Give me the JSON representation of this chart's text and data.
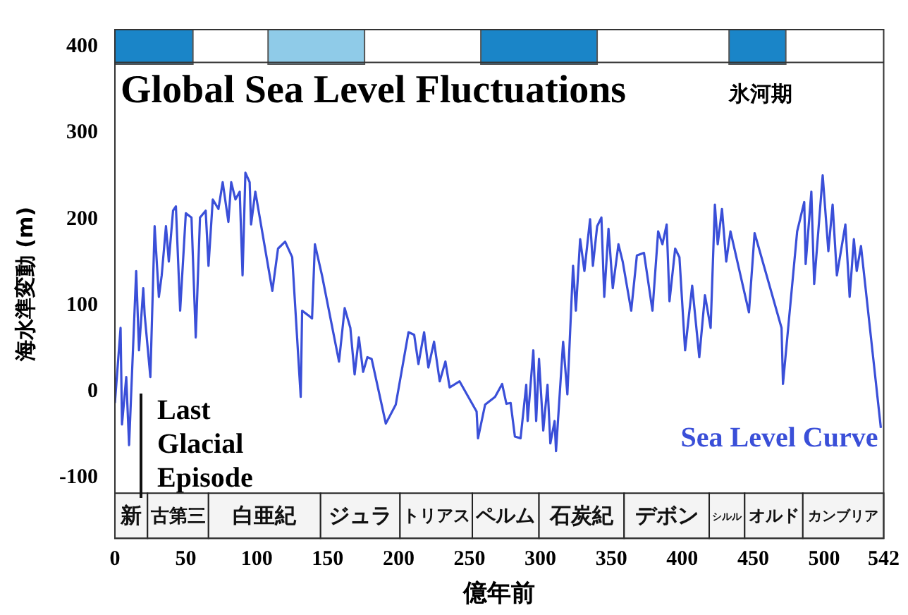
{
  "chart_data": {
    "type": "line",
    "title": "Global Sea Level Fluctuations",
    "xlabel": "億年前",
    "ylabel": "海水準変動 (m)",
    "annotations": [
      "氷河期",
      {
        "text": "Last Glacial Episode",
        "x": 10,
        "y": -62
      }
    ],
    "xlim": [
      0,
      542
    ],
    "xticks": [
      0,
      50,
      100,
      150,
      200,
      250,
      300,
      350,
      400,
      450,
      500,
      542
    ],
    "ylim": [
      -170,
      420
    ],
    "yticks": [
      -100,
      0,
      100,
      200,
      300,
      400
    ],
    "ref_lines": [
      {
        "axis": "y",
        "value": 382,
        "color": "#333333"
      }
    ],
    "grid": false,
    "legend": false,
    "marker": "none",
    "line_style": "solid",
    "bands": [
      {
        "axis": "x",
        "from": 0,
        "to": 55,
        "color": "#1a85c8"
      },
      {
        "axis": "x",
        "from": 108,
        "to": 176,
        "color": "#8fcbe8"
      },
      {
        "axis": "x",
        "from": 258,
        "to": 340,
        "color": "#1a85c8"
      },
      {
        "axis": "x",
        "from": 433,
        "to": 473,
        "color": "#1a85c8"
      },
      {
        "axis": "x",
        "from": 0,
        "to": 23,
        "label": "新",
        "color": "#f4f4f4"
      },
      {
        "axis": "x",
        "from": 23,
        "to": 66,
        "label": "古第三",
        "color": "#f4f4f4"
      },
      {
        "axis": "x",
        "from": 66,
        "to": 145,
        "label": "白亜紀",
        "color": "#f4f4f4"
      },
      {
        "axis": "x",
        "from": 145,
        "to": 201,
        "label": "ジュラ",
        "color": "#f4f4f4"
      },
      {
        "axis": "x",
        "from": 201,
        "to": 252,
        "label": "トリアス",
        "color": "#f4f4f4"
      },
      {
        "axis": "x",
        "from": 252,
        "to": 299,
        "label": "ペルム",
        "color": "#f4f4f4"
      },
      {
        "axis": "x",
        "from": 299,
        "to": 359,
        "label": "石炭紀",
        "color": "#f4f4f4"
      },
      {
        "axis": "x",
        "from": 359,
        "to": 419,
        "label": "デボン",
        "color": "#f4f4f4"
      },
      {
        "axis": "x",
        "from": 419,
        "to": 444,
        "label": "シルル",
        "color": "#f4f4f4"
      },
      {
        "axis": "x",
        "from": 444,
        "to": 485,
        "label": "オルド",
        "color": "#f4f4f4"
      },
      {
        "axis": "x",
        "from": 485,
        "to": 542,
        "label": "カンブリア",
        "color": "#f4f4f4"
      }
    ],
    "series": [
      {
        "name": "Sea Level Curve",
        "color": "#3a4fd8",
        "x": [
          0,
          4,
          5,
          8,
          10,
          15,
          17,
          20,
          21,
          25,
          28,
          31,
          33,
          36,
          38,
          41,
          43,
          46,
          50,
          54,
          57,
          60,
          64,
          66,
          69,
          73,
          76,
          80,
          82,
          85,
          88,
          90,
          92,
          95,
          96,
          99,
          111,
          115,
          120,
          125,
          131,
          132,
          136,
          139,
          141,
          146,
          158,
          162,
          166,
          169,
          172,
          175,
          178,
          181,
          191,
          198,
          207,
          211,
          214,
          218,
          221,
          225,
          229,
          233,
          236,
          243,
          255,
          256,
          261,
          268,
          273,
          276,
          279,
          282,
          286,
          290,
          291,
          295,
          297,
          299,
          302,
          305,
          307,
          310,
          311,
          313,
          316,
          319,
          323,
          325,
          328,
          331,
          335,
          337,
          340,
          343,
          345,
          348,
          351,
          355,
          358,
          364,
          368,
          373,
          379,
          383,
          386,
          389,
          391,
          395,
          398,
          402,
          407,
          412,
          416,
          420,
          423,
          425,
          428,
          431,
          434,
          447,
          451,
          470,
          471,
          481,
          486,
          487,
          491,
          493,
          499,
          503,
          506,
          509,
          515,
          518,
          521,
          523,
          526,
          540
        ],
        "values": [
          -13,
          74,
          -38,
          17,
          -62,
          140,
          48,
          120,
          89,
          17,
          192,
          110,
          135,
          192,
          151,
          210,
          215,
          94,
          207,
          202,
          63,
          202,
          210,
          146,
          223,
          212,
          243,
          197,
          243,
          223,
          232,
          135,
          254,
          243,
          194,
          232,
          117,
          166,
          174,
          156,
          -6,
          94,
          89,
          85,
          171,
          135,
          35,
          97,
          74,
          20,
          63,
          23,
          40,
          38,
          -37,
          -15,
          69,
          66,
          32,
          69,
          28,
          58,
          12,
          35,
          5,
          12,
          -23,
          -54,
          -15,
          -6,
          9,
          -14,
          -13,
          -52,
          -54,
          8,
          -34,
          48,
          -34,
          38,
          -45,
          8,
          -60,
          -34,
          -69,
          -18,
          58,
          -3,
          146,
          94,
          177,
          140,
          200,
          146,
          192,
          202,
          110,
          189,
          120,
          171,
          151,
          94,
          158,
          161,
          94,
          186,
          171,
          194,
          105,
          166,
          156,
          48,
          123,
          40,
          112,
          74,
          217,
          171,
          212,
          151,
          186,
          92,
          184,
          74,
          9,
          186,
          220,
          148,
          232,
          125,
          251,
          163,
          217,
          135,
          194,
          110,
          177,
          140,
          169,
          -42
        ]
      }
    ]
  }
}
